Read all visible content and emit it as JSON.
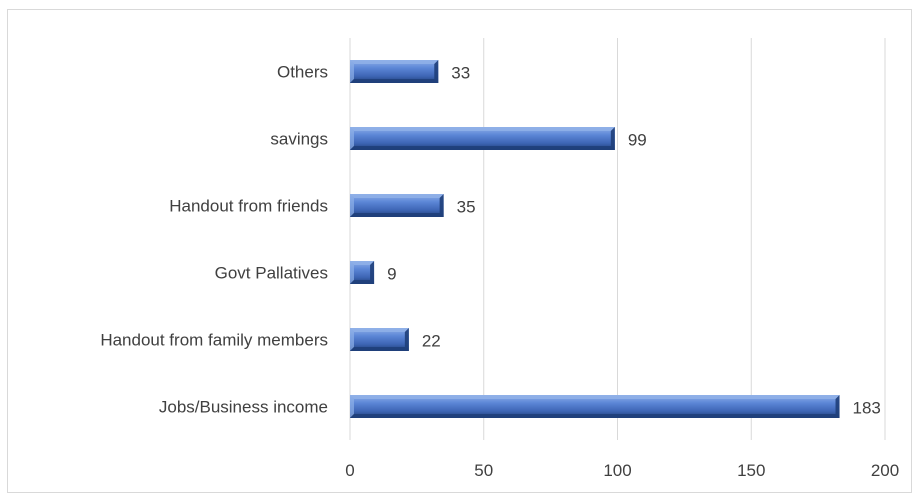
{
  "chart_data": {
    "type": "bar",
    "orientation": "horizontal",
    "categories": [
      "Others",
      "savings",
      "Handout from friends",
      "Govt Pallatives",
      "Handout from family members",
      "Jobs/Business income"
    ],
    "values": [
      33,
      99,
      35,
      9,
      22,
      183
    ],
    "xlim": [
      0,
      200
    ],
    "xticks": [
      0,
      50,
      100,
      150,
      200
    ],
    "grid": true,
    "legend": "none",
    "colors": {
      "bar": "#4472c4",
      "bar_dark": "#1f3f7a",
      "bar_light": "#8fb0e8",
      "grid": "#d9d9d9",
      "text": "#404040"
    }
  }
}
